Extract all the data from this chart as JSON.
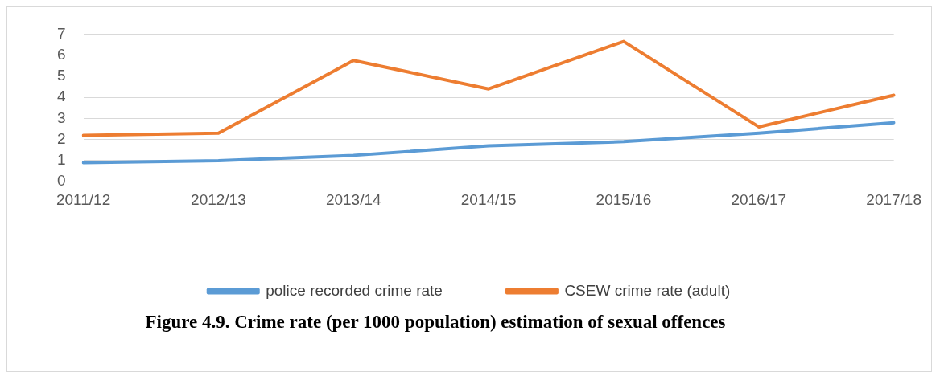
{
  "chart_data": {
    "type": "line",
    "title": "Figure 4.9. Crime rate (per 1000 population) estimation of sexual offences",
    "categories": [
      "2011/12",
      "2012/13",
      "2013/14",
      "2014/15",
      "2015/16",
      "2016/17",
      "2017/18"
    ],
    "series": [
      {
        "name": "police recorded crime rate",
        "color": "#5b9bd5",
        "values": [
          0.9,
          1.0,
          1.25,
          1.7,
          1.9,
          2.3,
          2.8
        ]
      },
      {
        "name": "CSEW crime rate (adult)",
        "color": "#ed7d31",
        "values": [
          2.2,
          2.3,
          5.75,
          4.4,
          6.65,
          2.6,
          4.1
        ]
      }
    ],
    "ylim": [
      0,
      7
    ],
    "yticks": [
      0,
      1,
      2,
      3,
      4,
      5,
      6,
      7
    ],
    "grid": "y",
    "legend": "bottom",
    "marker": "none",
    "line_style": "solid"
  }
}
